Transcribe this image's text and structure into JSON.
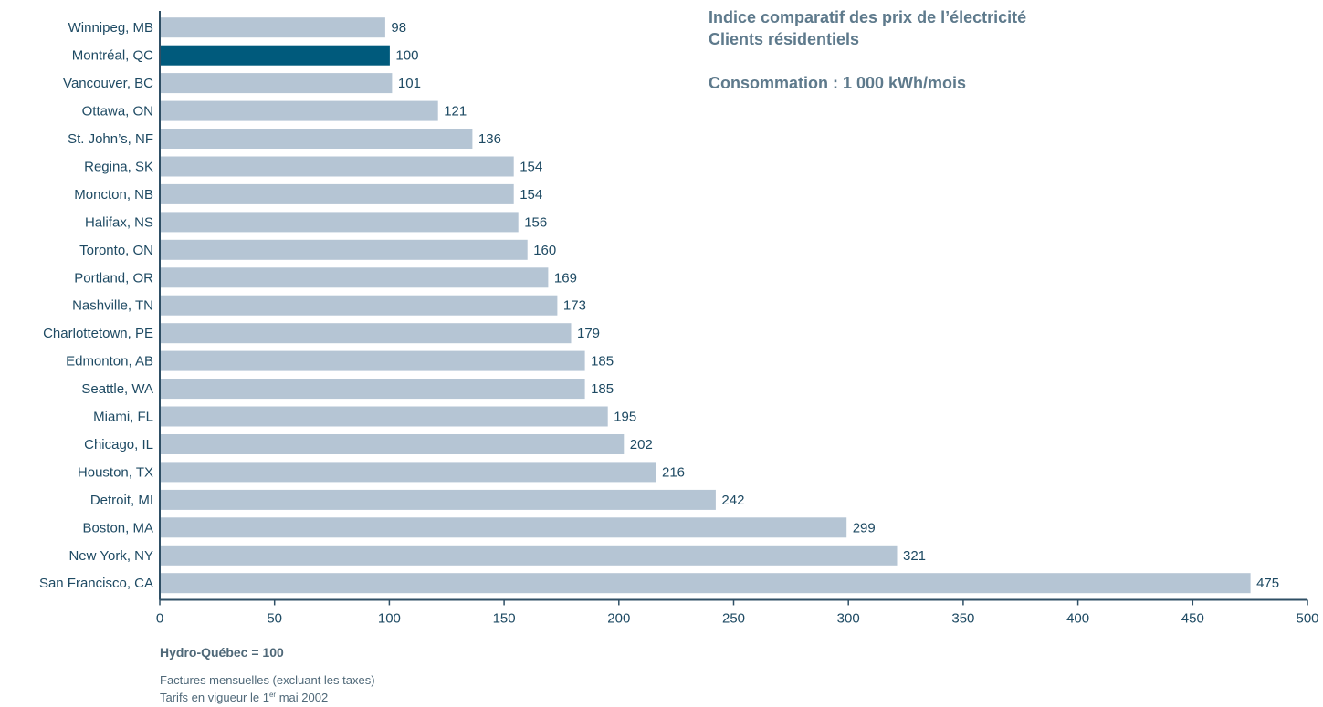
{
  "chart_data": {
    "type": "bar",
    "orientation": "horizontal",
    "title": "Indice comparatif des prix de l’électricité",
    "subtitle": "Clients résidentiels",
    "annotation": "Consommation : 1 000 kWh/mois",
    "categories": [
      "Winnipeg, MB",
      "Montréal, QC",
      "Vancouver, BC",
      "Ottawa, ON",
      "St. John’s, NF",
      "Regina, SK",
      "Moncton, NB",
      "Halifax, NS",
      "Toronto, ON",
      "Portland, OR",
      "Nashville, TN",
      "Charlottetown, PE",
      "Edmonton, AB",
      "Seattle, WA",
      "Miami, FL",
      "Chicago, IL",
      "Houston, TX",
      "Detroit, MI",
      "Boston, MA",
      "New York, NY",
      "San Francisco, CA"
    ],
    "values": [
      98,
      100,
      101,
      121,
      136,
      154,
      154,
      156,
      160,
      169,
      173,
      179,
      185,
      185,
      195,
      202,
      216,
      242,
      299,
      321,
      475
    ],
    "highlight": "Montréal, QC",
    "xlim": [
      0,
      500
    ],
    "x_ticks": [
      0,
      50,
      100,
      150,
      200,
      250,
      300,
      350,
      400,
      450,
      500
    ],
    "grid": false,
    "xlabel": "",
    "ylabel": "",
    "colors": {
      "bar": "#b5c5d4",
      "highlight": "#005a7c",
      "text": "#1e4a63",
      "axis": "#2f4f65",
      "title": "#5e7a8c"
    }
  },
  "footer": {
    "base": "Hydro-Québec = 100",
    "note1": "Factures mensuelles (excluant les taxes)",
    "note2_prefix": "Tarifs en vigueur le 1",
    "note2_sup": "er",
    "note2_suffix": " mai 2002"
  }
}
